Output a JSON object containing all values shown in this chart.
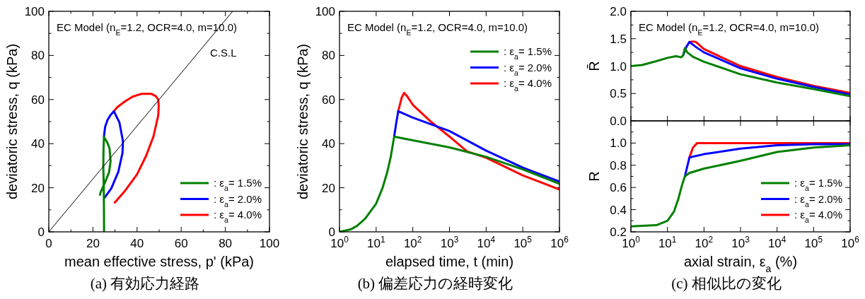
{
  "chart_data": [
    {
      "type": "line",
      "title": "(a)  有効応力経路",
      "xlabel": "mean effective stress, p' (kPa)",
      "ylabel": "deviatoric stress, q (kPa)",
      "xlim": [
        0,
        100
      ],
      "ylim": [
        0,
        100
      ],
      "xticks": [
        0,
        {
          "value": 10,
          "label": null
        },
        20,
        {
          "value": 30,
          "label": null
        },
        40,
        {
          "value": 50,
          "label": null
        },
        60,
        {
          "value": 70,
          "label": null
        },
        80,
        {
          "value": 90,
          "label": null
        },
        100
      ],
      "yticks": [
        0,
        {
          "value": 10,
          "label": null
        },
        20,
        {
          "value": 30,
          "label": null
        },
        40,
        {
          "value": 50,
          "label": null
        },
        60,
        {
          "value": 70,
          "label": null
        },
        80,
        {
          "value": 90,
          "label": null
        },
        100
      ],
      "legend": "bottom right",
      "annotations": [
        "EC Model (n$_{E}$=1.2, OCR=4.0, m=10.0)",
        "C.S.L"
      ],
      "series": [
        {
          "color": "#000000",
          "x": [
            0,
            83.3
          ],
          "values": [
            0,
            100
          ]
        },
        {
          "name": ": ε$_{a}$= 1.5%",
          "color": "#008000",
          "x": [
            25.05,
            25,
            24.9,
            24.7,
            24.8,
            25,
            25.3,
            26.5,
            27.5,
            28,
            27.3,
            25.5,
            23.5,
            23.2
          ],
          "values": [
            0,
            10,
            20,
            30,
            38,
            43.2,
            42.5,
            40.5,
            38,
            32,
            27,
            22.5,
            18,
            16.8
          ]
        },
        {
          "name": ": ε$_{a}$= 2.0%",
          "color": "#0000ff",
          "x": [
            25,
            25.5,
            26.6,
            28,
            29.5,
            32,
            33.6,
            33.4,
            31.5,
            28.3,
            25.3
          ],
          "values": [
            43.2,
            47.5,
            50.7,
            53,
            54.7,
            49.6,
            41.1,
            35.8,
            27.2,
            19.7,
            15.5
          ]
        },
        {
          "name": ": ε$_{a}$= 4.0%",
          "color": "#ff0000",
          "x": [
            29.5,
            31,
            34.6,
            38,
            42.1,
            46.4,
            48.5,
            49.6,
            49.8,
            49.6,
            47.4,
            44.2,
            40,
            34.6,
            29.9
          ],
          "values": [
            54.7,
            56.5,
            59.2,
            61.3,
            62.6,
            62.6,
            61.5,
            60,
            57,
            52.8,
            43.2,
            34.7,
            26.1,
            18.7,
            13.3
          ]
        }
      ]
    },
    {
      "type": "line",
      "title": "(b)  偏差応力の経時変化",
      "xlabel": "elapsed time, t (min)",
      "ylabel": "deviatoric stress, q (kPa)",
      "log": "x",
      "xlim": [
        1,
        1000000
      ],
      "ylim": [
        0,
        100
      ],
      "xticks": [
        {
          "value": 1,
          "label": "10$^{0}$"
        },
        {
          "value": 10,
          "label": "10$^{1}$"
        },
        {
          "value": 100,
          "label": "10$^{2}$"
        },
        {
          "value": 1000,
          "label": "10$^{3}$"
        },
        {
          "value": 10000,
          "label": "10$^{4}$"
        },
        {
          "value": 100000,
          "label": "10$^{5}$"
        },
        {
          "value": 1000000,
          "label": "10$^{6}$"
        }
      ],
      "yticks": [
        0,
        {
          "value": 10,
          "label": null
        },
        20,
        {
          "value": 30,
          "label": null
        },
        40,
        {
          "value": 50,
          "label": null
        },
        60,
        {
          "value": 70,
          "label": null
        },
        80,
        {
          "value": 90,
          "label": null
        },
        100
      ],
      "legend": "top right",
      "annotations": [
        "EC Model (n$_{E}$=1.2, OCR=4.0, m=10.0)"
      ],
      "series": [
        {
          "name": ": ε$_{a}$= 1.5%",
          "color": "#008000",
          "x": [
            1,
            2,
            3,
            5,
            10,
            15,
            20,
            25,
            31,
            60,
            100,
            1000,
            10000,
            100000,
            1000000
          ],
          "values": [
            0,
            1.1,
            2.7,
            6,
            12.8,
            20,
            27,
            34,
            43.2,
            42.2,
            41.5,
            38.3,
            34,
            28.3,
            21.8
          ]
        },
        {
          "name": ": ε$_{a}$= 2.0%",
          "color": "#0000ff",
          "x": [
            31,
            35,
            40,
            100,
            1000,
            10000,
            100000,
            1000000
          ],
          "values": [
            43.2,
            49,
            54.7,
            51.8,
            45.7,
            36.8,
            29.1,
            22.8
          ]
        },
        {
          "name": ": ε$_{a}$= 4.0%",
          "color": "#ff0000",
          "x": [
            40,
            50,
            58,
            70,
            100,
            300,
            1000,
            3000,
            10000,
            100000,
            1000000
          ],
          "values": [
            54.7,
            61,
            63,
            61.5,
            57.6,
            50.2,
            43.2,
            36.5,
            33.6,
            25.6,
            19.2
          ]
        }
      ]
    },
    {
      "type": "line",
      "ylabel": "R̄",
      "log": "x",
      "tick_labels": "y",
      "xlim": [
        1,
        1000000
      ],
      "ylim": [
        0,
        2
      ],
      "xticks": [
        1,
        10,
        100,
        1000,
        10000,
        100000,
        1000000
      ],
      "yticks": [
        {
          "value": 0,
          "label": "0.0"
        },
        {
          "value": 0.25,
          "label": null
        },
        0.5,
        {
          "value": 0.75,
          "label": null
        },
        {
          "value": 1,
          "label": "1.0"
        },
        {
          "value": 1.25,
          "label": null
        },
        1.5,
        {
          "value": 1.75,
          "label": null
        },
        {
          "value": 2,
          "label": "2.0"
        }
      ],
      "annotations": [
        "EC Model (n$_{E}$=1.2, OCR=4.0, m=10.0)"
      ],
      "series": [
        {
          "color": "#008000",
          "x": [
            1,
            2,
            5,
            10,
            17,
            24,
            27,
            30,
            35,
            50,
            100,
            1000,
            10000,
            100000,
            1000000
          ],
          "values": [
            1,
            1.02,
            1.09,
            1.15,
            1.18,
            1.16,
            1.2,
            1.33,
            1.25,
            1.17,
            1.08,
            0.85,
            0.7,
            0.58,
            0.45
          ]
        },
        {
          "color": "#0000ff",
          "x": [
            27,
            33,
            40,
            60,
            100,
            1000,
            10000,
            100000,
            1000000
          ],
          "values": [
            1.2,
            1.35,
            1.44,
            1.35,
            1.25,
            0.96,
            0.77,
            0.62,
            0.48
          ]
        },
        {
          "color": "#ff0000",
          "x": [
            40,
            50,
            60,
            100,
            1000,
            10000,
            100000,
            1000000
          ],
          "values": [
            1.44,
            1.45,
            1.44,
            1.31,
            1,
            0.8,
            0.64,
            0.51
          ]
        }
      ]
    },
    {
      "type": "line",
      "title": "(c)  相似比の変化",
      "xlabel": "axial strain, ε$_{a}$ (%)",
      "ylabel": "R",
      "log": "x",
      "xlim": [
        1,
        1000000
      ],
      "ylim": [
        0.2,
        1.2
      ],
      "xticks": [
        {
          "value": 1,
          "label": "10$^{0}$"
        },
        {
          "value": 10,
          "label": "10$^{1}$"
        },
        {
          "value": 100,
          "label": "10$^{2}$"
        },
        {
          "value": 1000,
          "label": "10$^{3}$"
        },
        {
          "value": 10000,
          "label": "10$^{4}$"
        },
        {
          "value": 100000,
          "label": "10$^{5}$"
        },
        {
          "value": 1000000,
          "label": "10$^{6}$"
        }
      ],
      "yticks": [
        0.2,
        {
          "value": 0.3,
          "label": null
        },
        0.4,
        {
          "value": 0.5,
          "label": null
        },
        0.6,
        {
          "value": 0.7,
          "label": null
        },
        0.8,
        {
          "value": 0.9,
          "label": null
        },
        {
          "value": 1,
          "label": "1.0"
        },
        {
          "value": 1.1,
          "label": null
        }
      ],
      "legend": "bottom right",
      "series": [
        {
          "name": ": ε$_{a}$= 1.5%",
          "color": "#008000",
          "x": [
            1,
            5,
            10,
            15,
            20,
            25,
            30,
            40,
            100,
            1000,
            10000,
            100000,
            1000000
          ],
          "values": [
            0.25,
            0.26,
            0.3,
            0.38,
            0.5,
            0.62,
            0.7,
            0.73,
            0.77,
            0.84,
            0.92,
            0.96,
            0.98
          ]
        },
        {
          "name": ": ε$_{a}$= 2.0%",
          "color": "#0000ff",
          "x": [
            30,
            40,
            100,
            1000,
            10000,
            100000,
            1000000
          ],
          "values": [
            0.7,
            0.87,
            0.9,
            0.95,
            0.98,
            0.99,
            0.99
          ]
        },
        {
          "name": ": ε$_{a}$= 4.0%",
          "color": "#ff0000",
          "x": [
            40,
            50,
            65,
            1000000
          ],
          "values": [
            0.87,
            0.96,
            1,
            1
          ]
        }
      ]
    }
  ]
}
